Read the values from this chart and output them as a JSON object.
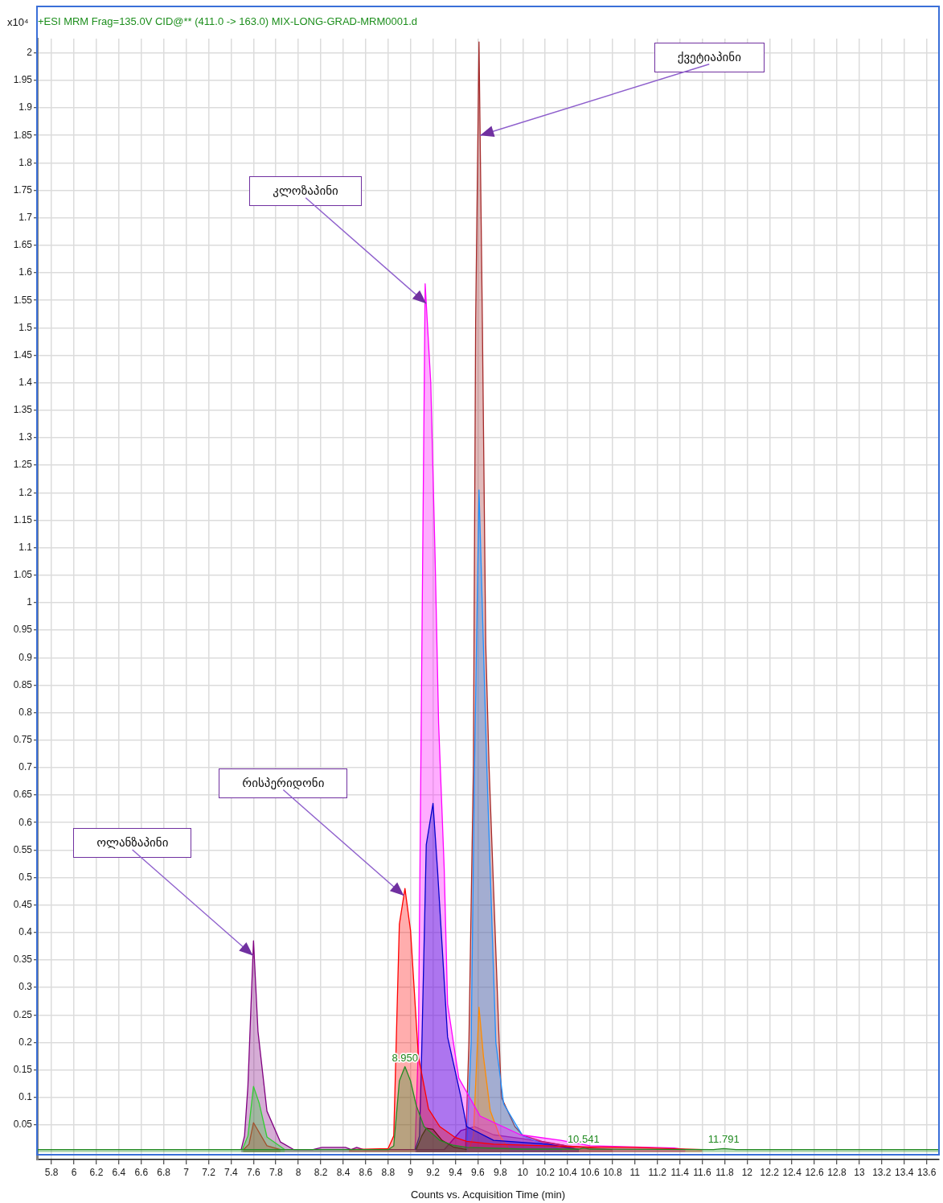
{
  "chart_data": {
    "type": "area",
    "title": "+ESI MRM Frag=135.0V CID@** (411.0 -> 163.0) MIX-LONG-GRAD-MRM0001.d",
    "xlabel": "Counts vs. Acquisition Time (min)",
    "ylabel": "x10⁴",
    "xlim": [
      5.67,
      13.71
    ],
    "ylim": [
      -0.013,
      2.026
    ],
    "xticks": [
      5.8,
      6,
      6.2,
      6.4,
      6.6,
      6.8,
      7,
      7.2,
      7.4,
      7.6,
      7.8,
      8,
      8.2,
      8.4,
      8.6,
      8.8,
      9,
      9.2,
      9.4,
      9.6,
      9.8,
      10,
      10.2,
      10.4,
      10.6,
      10.8,
      11,
      11.2,
      11.4,
      11.6,
      11.8,
      12,
      12.2,
      12.4,
      12.6,
      12.8,
      13,
      13.2,
      13.4,
      13.6
    ],
    "yticks": [
      0.05,
      0.1,
      0.15,
      0.2,
      0.25,
      0.3,
      0.35,
      0.4,
      0.45,
      0.5,
      0.55,
      0.6,
      0.65,
      0.7,
      0.75,
      0.8,
      0.85,
      0.9,
      0.95,
      1,
      1.05,
      1.1,
      1.15,
      1.2,
      1.25,
      1.3,
      1.35,
      1.4,
      1.45,
      1.5,
      1.55,
      1.6,
      1.65,
      1.7,
      1.75,
      1.8,
      1.85,
      1.9,
      1.95,
      2
    ],
    "grid": true,
    "series": [
      {
        "color": "#800080",
        "x": [
          7.49,
          7.52,
          7.55,
          7.6,
          7.64,
          7.72,
          7.84,
          7.96,
          8.13,
          8.21,
          8.42,
          8.47,
          8.52,
          8.58,
          9.3,
          9.45,
          9.57,
          9.74,
          10.0,
          10.36,
          10.5
        ],
        "values": [
          0.005,
          0.03,
          0.12,
          0.385,
          0.22,
          0.075,
          0.019,
          0.005,
          0.005,
          0.009,
          0.009,
          0.005,
          0.009,
          0.005,
          0.005,
          0.04,
          0.047,
          0.032,
          0.025,
          0.013,
          0.005
        ]
      },
      {
        "color": "#32cd32",
        "x": [
          7.5,
          7.55,
          7.6,
          7.65,
          7.72,
          7.88
        ],
        "values": [
          0.005,
          0.03,
          0.12,
          0.09,
          0.028,
          0.005
        ]
      },
      {
        "color": "#a0522d",
        "x": [
          7.51,
          7.56,
          7.6,
          7.72,
          7.84
        ],
        "values": [
          0.005,
          0.015,
          0.054,
          0.012,
          0.005
        ]
      },
      {
        "color": "#a52a2a",
        "x": [
          9.49,
          9.52,
          9.56,
          9.58,
          9.61,
          9.64,
          9.67,
          9.7,
          9.79,
          9.81,
          9.93,
          10.0,
          10.17,
          10.39,
          10.6,
          10.8
        ],
        "values": [
          0.005,
          0.2,
          0.7,
          1.51,
          2.02,
          1.51,
          0.925,
          0.7,
          0.2,
          0.1,
          0.047,
          0.031,
          0.02,
          0.012,
          0.008,
          0.005
        ]
      },
      {
        "color": "#1e90ff",
        "x": [
          9.5,
          9.54,
          9.57,
          9.61,
          9.68,
          9.76,
          9.83,
          9.95,
          10.0,
          10.17,
          10.35
        ],
        "values": [
          0.005,
          0.2,
          0.7,
          1.205,
          0.7,
          0.2,
          0.088,
          0.047,
          0.03,
          0.016,
          0.005
        ]
      },
      {
        "color": "#ff8c00",
        "x": [
          9.52,
          9.56,
          9.61,
          9.65,
          9.71,
          9.79,
          9.88
        ],
        "values": [
          0.005,
          0.03,
          0.264,
          0.174,
          0.076,
          0.032,
          0.005
        ]
      },
      {
        "color": "#ff00ff",
        "x": [
          9.04,
          9.07,
          9.1,
          9.13,
          9.18,
          9.22,
          9.25,
          9.3,
          9.33,
          9.43,
          9.62,
          9.98,
          10.34,
          10.6,
          11.0,
          11.35,
          11.45
        ],
        "values": [
          0.005,
          0.2,
          0.9,
          1.58,
          1.4,
          1.07,
          0.78,
          0.515,
          0.27,
          0.135,
          0.066,
          0.032,
          0.022,
          0.012,
          0.01,
          0.008,
          0.005
        ]
      },
      {
        "color": "#0000cd",
        "x": [
          9.04,
          9.08,
          9.1,
          9.14,
          9.2,
          9.24,
          9.33,
          9.45,
          9.5,
          9.74,
          10.22,
          10.5
        ],
        "values": [
          0.005,
          0.03,
          0.19,
          0.56,
          0.635,
          0.515,
          0.21,
          0.1,
          0.047,
          0.022,
          0.015,
          0.005
        ]
      },
      {
        "color": "#1a1a1a",
        "x": [
          9.05,
          9.1,
          9.14,
          9.2,
          9.28,
          9.38,
          9.5
        ],
        "values": [
          0.005,
          0.03,
          0.044,
          0.042,
          0.022,
          0.01,
          0.005
        ]
      },
      {
        "color": "#ff0000",
        "x": [
          8.45,
          8.8,
          8.85,
          8.9,
          8.95,
          9.0,
          9.07,
          9.16,
          9.26,
          9.4,
          9.5,
          9.74,
          10.2,
          10.6,
          11.0,
          11.3,
          11.6
        ],
        "values": [
          0.005,
          0.007,
          0.03,
          0.415,
          0.48,
          0.403,
          0.174,
          0.079,
          0.047,
          0.027,
          0.02,
          0.015,
          0.012,
          0.01,
          0.009,
          0.007,
          0.005
        ]
      },
      {
        "color": "#228b22",
        "x": [
          5.67,
          8.8,
          8.85,
          8.9,
          8.95,
          9.0,
          9.05,
          9.12,
          9.26,
          9.38,
          9.5,
          10.0,
          10.5,
          10.541,
          10.6,
          11.7,
          11.791,
          11.9,
          13.71
        ],
        "values": [
          0.005,
          0.005,
          0.012,
          0.13,
          0.156,
          0.13,
          0.086,
          0.047,
          0.022,
          0.013,
          0.009,
          0.006,
          0.006,
          0.008,
          0.006,
          0.005,
          0.007,
          0.005,
          0.005
        ]
      }
    ],
    "annotations": [
      {
        "text": "ქვეტიაპინი",
        "x": 9.62,
        "y": 1.85
      },
      {
        "text": "კლოზაპინი",
        "x": 9.14,
        "y": 1.544
      },
      {
        "text": "რისპერიდონი",
        "x": 8.94,
        "y": 0.467
      },
      {
        "text": "ოლანზაპინი",
        "x": 7.595,
        "y": 0.358
      },
      {
        "text": "8.950",
        "x": 8.95,
        "y": 0.156
      },
      {
        "text": "10.541",
        "x": 10.541,
        "y": 0.008
      },
      {
        "text": "11.791",
        "x": 11.791,
        "y": 0.007
      }
    ]
  }
}
